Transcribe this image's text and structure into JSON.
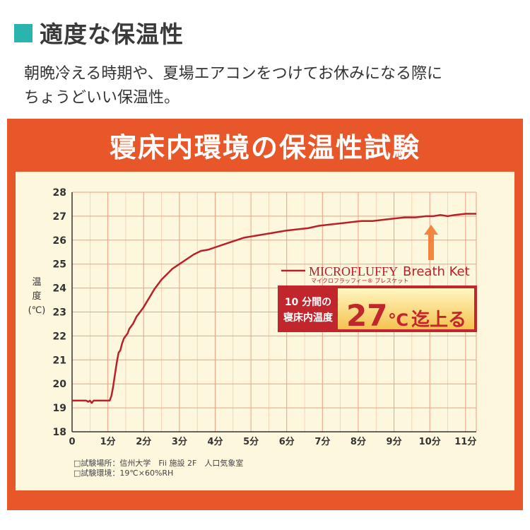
{
  "header": {
    "title": "適度な保温性",
    "description_lines": [
      "朝晩冷える時期や、夏場エアコンをつけてお休みになる際に",
      "ちょうどいい保温性。"
    ]
  },
  "panel": {
    "heading": "寝床内環境の保温性試験"
  },
  "legend": {
    "product_name_main": "MICROFLUFFY",
    "product_name_sub": "Breath Ket",
    "product_name_kana": "マイクロフラッフィー® ブレスケット"
  },
  "callout": {
    "label_line_1": "10 分間の",
    "label_line_2": "寝床内温度",
    "value": "27",
    "unit": "℃",
    "suffix": "迄上る"
  },
  "notes": [
    "□試験場所：信州大学　Fii 施設 2F　人口気象室",
    "□試験環境：19℃×60%RH"
  ],
  "colors": {
    "accent_teal": "#2bb3ad",
    "panel_orange": "#e8572a",
    "chart_bg": "#fdf7de",
    "grid": "#f0a080",
    "line": "#b8202a",
    "callout_red": "#c0262b",
    "callout_yellow_top": "#fff7c0",
    "callout_yellow_bottom": "#f5c250"
  },
  "chart_data": {
    "type": "line",
    "title": "寝床内環境の保温性試験",
    "ylabel": "温度(℃)",
    "xlabel": "",
    "ylim": [
      18,
      28
    ],
    "xlim": [
      0,
      11.3
    ],
    "grid": true,
    "legend_position": "right",
    "x_ticks": [
      "0",
      "1分",
      "2分",
      "3分",
      "4分",
      "5分",
      "6分",
      "7分",
      "8分",
      "9分",
      "10分",
      "11分"
    ],
    "y_ticks": [
      "18",
      "19",
      "20",
      "21",
      "22",
      "23",
      "24",
      "25",
      "26",
      "27",
      "28"
    ],
    "series": [
      {
        "name": "MICROFLUFFY Breath Ket",
        "x": [
          0,
          0.4,
          0.45,
          0.5,
          0.55,
          0.6,
          1.0,
          1.05,
          1.1,
          1.15,
          1.2,
          1.25,
          1.3,
          1.35,
          1.4,
          1.45,
          1.5,
          1.55,
          1.6,
          1.7,
          1.8,
          1.9,
          2.0,
          2.1,
          2.2,
          2.3,
          2.4,
          2.5,
          2.6,
          2.7,
          2.8,
          2.9,
          3.0,
          3.2,
          3.4,
          3.6,
          3.8,
          4.0,
          4.2,
          4.4,
          4.6,
          4.8,
          5.0,
          5.2,
          5.4,
          5.6,
          5.8,
          6.0,
          6.3,
          6.6,
          6.9,
          7.2,
          7.5,
          7.8,
          8.1,
          8.4,
          8.7,
          9.0,
          9.3,
          9.6,
          9.9,
          10.1,
          10.3,
          10.5,
          10.7,
          11.0,
          11.3
        ],
        "values": [
          19.3,
          19.3,
          19.25,
          19.3,
          19.2,
          19.3,
          19.3,
          19.3,
          19.5,
          19.9,
          20.4,
          20.9,
          21.3,
          21.4,
          21.7,
          21.9,
          22.0,
          22.1,
          22.3,
          22.5,
          22.8,
          23.0,
          23.2,
          23.45,
          23.7,
          23.95,
          24.15,
          24.35,
          24.5,
          24.65,
          24.8,
          24.9,
          25.0,
          25.2,
          25.4,
          25.55,
          25.6,
          25.7,
          25.8,
          25.9,
          26.0,
          26.1,
          26.15,
          26.2,
          26.25,
          26.3,
          26.35,
          26.4,
          26.45,
          26.5,
          26.6,
          26.65,
          26.7,
          26.75,
          26.8,
          26.8,
          26.85,
          26.9,
          26.95,
          26.95,
          27.0,
          27.0,
          27.05,
          27.0,
          27.05,
          27.1,
          27.1
        ]
      }
    ]
  }
}
